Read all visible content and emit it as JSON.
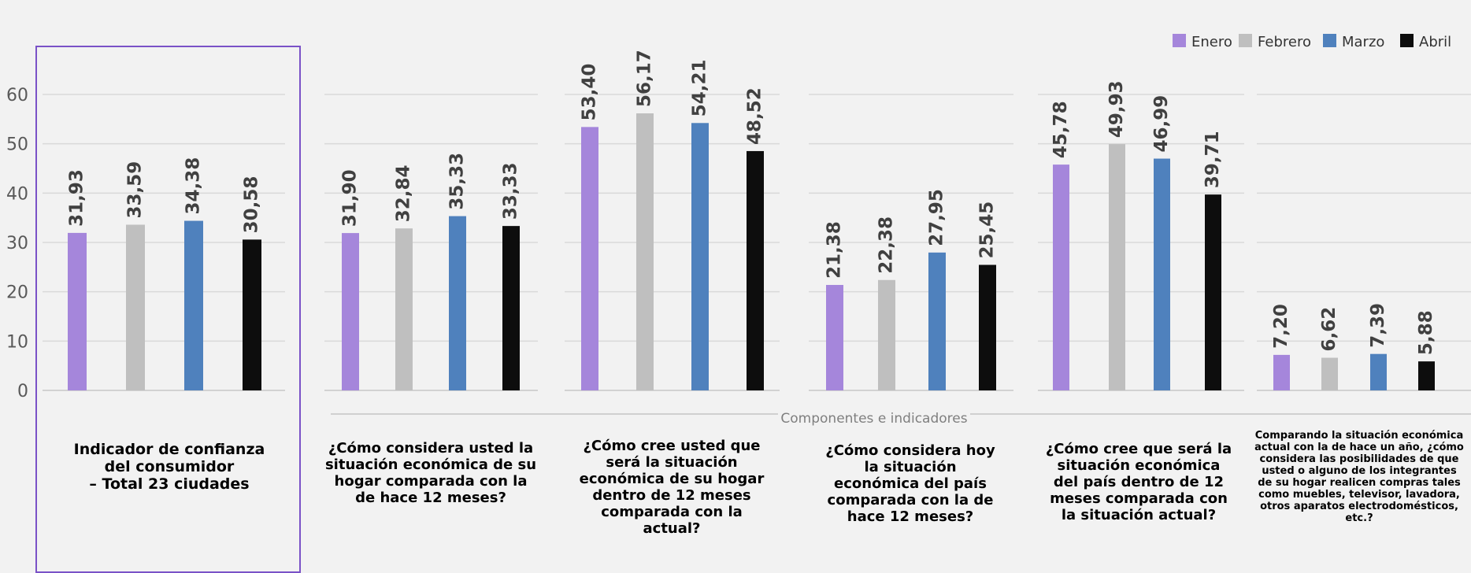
{
  "chart_data": {
    "type": "bar",
    "axis_title": "Componentes e indicadores",
    "ylim": [
      0,
      60
    ],
    "yticks": [
      0,
      10,
      20,
      30,
      40,
      50,
      60
    ],
    "legend_position": "top-right",
    "series": [
      {
        "name": "Enero",
        "color": "#a586db"
      },
      {
        "name": "Febrero",
        "color": "#bfbfbf"
      },
      {
        "name": "Marzo",
        "color": "#4f81bd"
      },
      {
        "name": "Abril",
        "color": "#0d0d0d"
      }
    ],
    "panels": [
      {
        "label": "Indicador de confianza\ndel consumidor\n– Total 23 ciudades",
        "values": [
          31.93,
          33.59,
          34.38,
          30.58
        ],
        "value_labels": [
          "31,93",
          "33,59",
          "34,38",
          "30,58"
        ],
        "highlighted": true
      },
      {
        "label": "¿Cómo considera usted la\nsituación económica de su\nhogar comparada con la\nde hace 12 meses?",
        "values": [
          31.9,
          32.84,
          35.33,
          33.33
        ],
        "value_labels": [
          "31,90",
          "32,84",
          "35,33",
          "33,33"
        ]
      },
      {
        "label": "¿Cómo cree usted que\nserá la situación\neconómica de su hogar\ndentro de 12 meses\ncomparada con la\nactual?",
        "values": [
          53.4,
          56.17,
          54.21,
          48.52
        ],
        "value_labels": [
          "53,40",
          "56,17",
          "54,21",
          "48,52"
        ]
      },
      {
        "label": "¿Cómo considera hoy\nla situación\neconómica del país\ncomparada con la de\nhace 12 meses?",
        "values": [
          21.38,
          22.38,
          27.95,
          25.45
        ],
        "value_labels": [
          "21,38",
          "22,38",
          "27,95",
          "25,45"
        ]
      },
      {
        "label": "¿Cómo cree que será la\nsituación económica\ndel país dentro de 12\nmeses comparada con\nla situación actual?",
        "values": [
          45.78,
          49.93,
          46.99,
          39.71
        ],
        "value_labels": [
          "45,78",
          "49,93",
          "46,99",
          "39,71"
        ]
      },
      {
        "label": "Comparando la situación económica\nactual con la de hace un año, ¿cómo\nconsidera las posibilidades de que\nusted o alguno de los integrantes\nde su hogar realicen compras tales\ncomo muebles, televisor, lavadora,\notros aparatos electrodomésticos,\netc.?",
        "values": [
          7.2,
          6.62,
          7.39,
          5.88
        ],
        "value_labels": [
          "7,20",
          "6,62",
          "7,39",
          "5,88"
        ]
      }
    ]
  }
}
